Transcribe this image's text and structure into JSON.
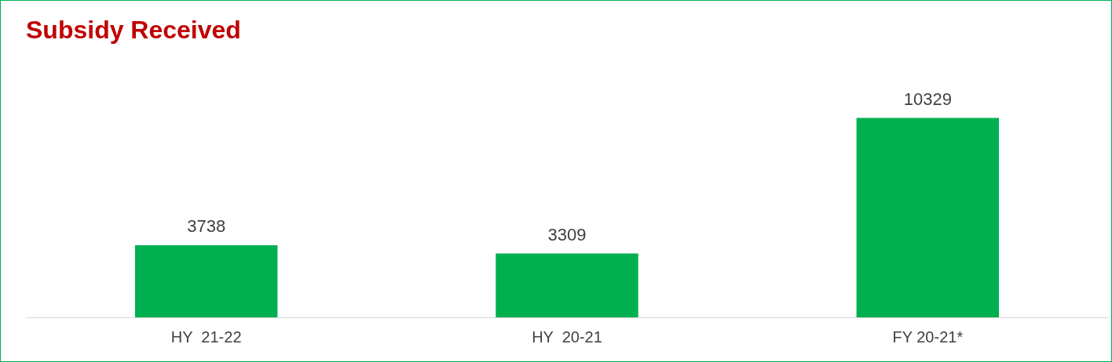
{
  "chart_data": {
    "type": "bar",
    "title": "Subsidy Received",
    "categories": [
      "HY  21-22",
      "HY  20-21",
      "FY 20-21*"
    ],
    "values": [
      3738,
      3309,
      10329
    ],
    "color": "#00b050",
    "data_labels": true,
    "grid": false,
    "legend": false,
    "tick_labels": "x"
  }
}
